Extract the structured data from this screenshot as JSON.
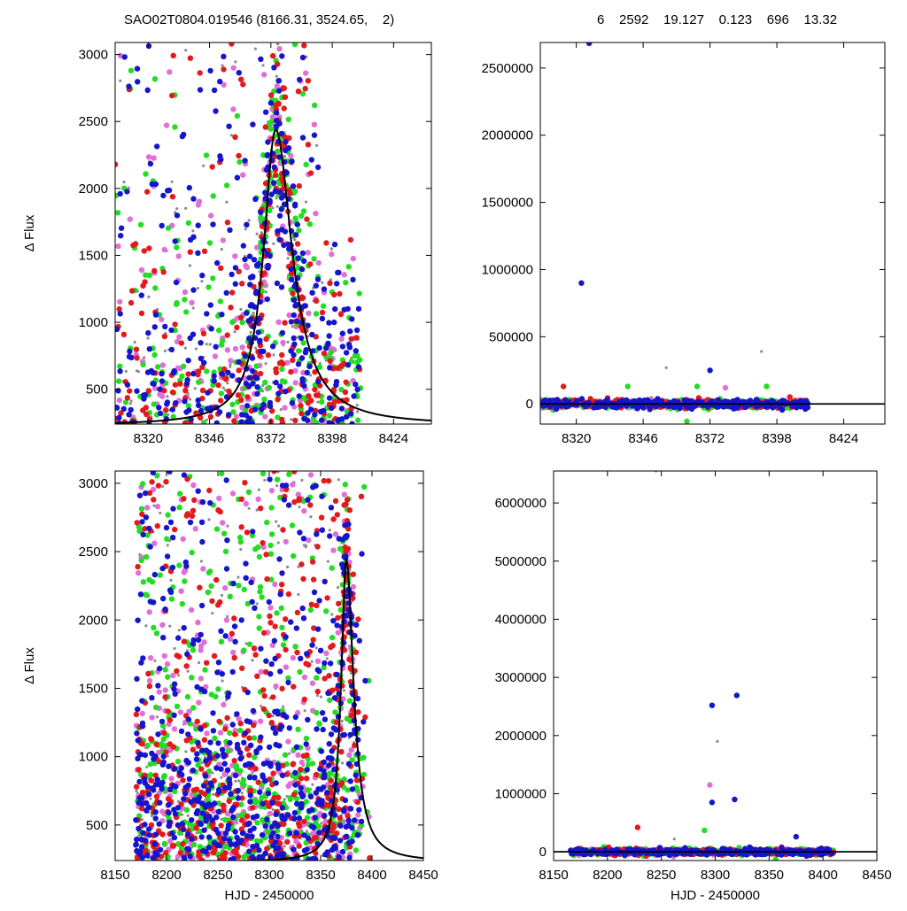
{
  "header": {
    "left_title": "SAO02T0804.019546 (8166.31, 3524.65,    2)",
    "right_title": "6    2592    19.127    0.123    696    13.32"
  },
  "colors": {
    "red": "#e31a1c",
    "green": "#22dd22",
    "blue": "#1515cc",
    "magenta": "#e070d8",
    "gray": "#8c8c8c",
    "model": "#000000"
  },
  "chart_data": [
    {
      "type": "scatter",
      "panel": "top-left",
      "xlabel": "",
      "ylabel": "Δ Flux",
      "xlim": [
        8306,
        8440
      ],
      "ylim": [
        240,
        3090
      ],
      "xticks": [
        8320,
        8346,
        8372,
        8398,
        8424
      ],
      "yticks": [
        500,
        1000,
        1500,
        2000,
        2500,
        3000
      ],
      "model_curve": {
        "peak_x": 8374,
        "peak_y": 2440,
        "rise_width": 6.2,
        "decay_width": 8.5,
        "baseline": 230
      },
      "point_summary": {
        "x_range": [
          8306,
          8410
        ],
        "y_range": [
          240,
          3090
        ],
        "series": [
          "red",
          "green",
          "blue",
          "magenta",
          "gray"
        ]
      }
    },
    {
      "type": "scatter",
      "panel": "top-right",
      "xlabel": "",
      "ylabel": "",
      "xlim": [
        8306,
        8440
      ],
      "ylim": [
        -150000,
        2690000
      ],
      "xticks": [
        8320,
        8346,
        8372,
        8398,
        8424
      ],
      "yticks": [
        0,
        500000,
        1000000,
        1500000,
        2000000,
        2500000
      ],
      "outliers": [
        {
          "x": 8325,
          "y": 2685000,
          "series": "blue"
        },
        {
          "x": 8322,
          "y": 900000,
          "series": "blue"
        },
        {
          "x": 8372,
          "y": 250000,
          "series": "blue"
        },
        {
          "x": 8392,
          "y": 390000,
          "series": "gray"
        },
        {
          "x": 8355,
          "y": 270000,
          "series": "gray"
        },
        {
          "x": 8315,
          "y": 130000,
          "series": "red"
        },
        {
          "x": 8340,
          "y": 130000,
          "series": "green"
        },
        {
          "x": 8367,
          "y": 130000,
          "series": "green"
        },
        {
          "x": 8394,
          "y": 130000,
          "series": "green"
        },
        {
          "x": 8378,
          "y": 120000,
          "series": "magenta"
        },
        {
          "x": 8363,
          "y": -130000,
          "series": "green"
        }
      ],
      "point_summary": {
        "x_range": [
          8306,
          8410
        ],
        "y_range": [
          -50000,
          60000
        ],
        "series": [
          "red",
          "green",
          "blue",
          "magenta",
          "gray"
        ]
      }
    },
    {
      "type": "scatter",
      "panel": "bottom-left",
      "xlabel": "HJD - 2450000",
      "ylabel": "Δ Flux",
      "xlim": [
        8150,
        8450
      ],
      "ylim": [
        240,
        3090
      ],
      "xticks": [
        8150,
        8200,
        8250,
        8300,
        8350,
        8400,
        8450
      ],
      "yticks": [
        500,
        1000,
        1500,
        2000,
        2500,
        3000
      ],
      "model_curve": {
        "peak_x": 8375,
        "peak_y": 2440,
        "rise_width": 6.2,
        "decay_width": 8.5,
        "baseline": 230
      },
      "point_summary": {
        "x_range": [
          8170,
          8410
        ],
        "y_range": [
          240,
          3090
        ],
        "series": [
          "red",
          "green",
          "blue",
          "magenta",
          "gray"
        ]
      }
    },
    {
      "type": "scatter",
      "panel": "bottom-right",
      "xlabel": "HJD - 2450000",
      "ylabel": "",
      "xlim": [
        8150,
        8450
      ],
      "ylim": [
        -150000,
        6550000
      ],
      "xticks": [
        8150,
        8200,
        8250,
        8300,
        8350,
        8400,
        8450
      ],
      "yticks": [
        0,
        1000000,
        2000000,
        3000000,
        4000000,
        5000000,
        6000000
      ],
      "outliers": [
        {
          "x": 8320,
          "y": 2690000,
          "series": "blue"
        },
        {
          "x": 8297,
          "y": 2520000,
          "series": "blue"
        },
        {
          "x": 8302,
          "y": 1900000,
          "series": "gray"
        },
        {
          "x": 8295,
          "y": 1150000,
          "series": "magenta"
        },
        {
          "x": 8297,
          "y": 850000,
          "series": "blue"
        },
        {
          "x": 8318,
          "y": 900000,
          "series": "blue"
        },
        {
          "x": 8228,
          "y": 420000,
          "series": "red"
        },
        {
          "x": 8290,
          "y": 370000,
          "series": "green"
        },
        {
          "x": 8375,
          "y": 260000,
          "series": "blue"
        },
        {
          "x": 8262,
          "y": 220000,
          "series": "gray"
        },
        {
          "x": 8245,
          "y": 6550000,
          "series": "gray"
        },
        {
          "x": 8356,
          "y": -130000,
          "series": "green"
        }
      ],
      "point_summary": {
        "x_range": [
          8165,
          8410
        ],
        "y_range": [
          -60000,
          120000
        ],
        "series": [
          "red",
          "green",
          "blue",
          "magenta",
          "gray"
        ]
      }
    }
  ]
}
